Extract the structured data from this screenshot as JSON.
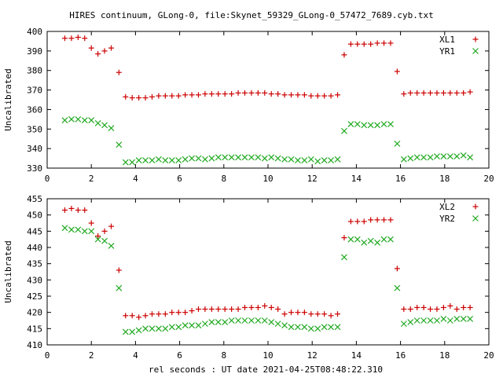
{
  "title": "HIRES continuum, GLong-0, file:Skynet_59329_GLong-0_57472_7689.cyb.txt",
  "xlabel": "rel seconds : UT date 2021-04-25T08:48:22.310",
  "chart_data": [
    {
      "type": "scatter",
      "ylabel": "Uncalibrated",
      "xlim": [
        0,
        20
      ],
      "ylim": [
        330,
        400
      ],
      "xticks": [
        "0",
        "2",
        "4",
        "6",
        "8",
        "10",
        "12",
        "14",
        "16",
        "18",
        "20"
      ],
      "yticks": [
        "330",
        "340",
        "350",
        "360",
        "370",
        "380",
        "390",
        "400"
      ],
      "legend_position": "top-right",
      "x": [
        0.8,
        1.1,
        1.4,
        1.7,
        2.0,
        2.3,
        2.6,
        2.9,
        3.25,
        3.55,
        3.85,
        4.15,
        4.45,
        4.75,
        5.05,
        5.35,
        5.65,
        5.95,
        6.25,
        6.55,
        6.85,
        7.15,
        7.45,
        7.75,
        8.05,
        8.35,
        8.65,
        8.95,
        9.25,
        9.55,
        9.85,
        10.15,
        10.45,
        10.75,
        11.05,
        11.35,
        11.65,
        11.95,
        12.25,
        12.55,
        12.85,
        13.15,
        13.45,
        13.75,
        14.05,
        14.35,
        14.65,
        14.95,
        15.25,
        15.55,
        15.85,
        16.15,
        16.45,
        16.75,
        17.05,
        17.35,
        17.65,
        17.95,
        18.25,
        18.55,
        18.85,
        19.15
      ],
      "series": [
        {
          "name": "XL1",
          "color": "#cc0000",
          "marker": "plus",
          "values": [
            396.5,
            396.5,
            397,
            396.5,
            391.5,
            388.5,
            390,
            391.5,
            379,
            366.5,
            366,
            366,
            366,
            366.5,
            367,
            367,
            367,
            367,
            367.5,
            367.5,
            367.5,
            368,
            368,
            368,
            368,
            368,
            368.5,
            368.5,
            368.5,
            368.5,
            368.5,
            368,
            368,
            367.5,
            367.5,
            367.5,
            367.5,
            367,
            367,
            367,
            367,
            367.5,
            388,
            393.5,
            393.5,
            393.5,
            393.5,
            394,
            394,
            394,
            379.5,
            368,
            368.5,
            368.5,
            368.5,
            368.5,
            368.5,
            368.5,
            368.5,
            368.5,
            368.5,
            369
          ]
        },
        {
          "name": "YR1",
          "color": "#22aa22",
          "marker": "cross",
          "values": [
            354.5,
            355,
            355,
            354.5,
            354.5,
            353,
            352,
            350.5,
            342,
            333,
            333,
            334,
            334,
            334,
            334.5,
            334,
            334,
            334,
            334.5,
            335,
            335,
            334.5,
            335,
            335.5,
            335.5,
            335.5,
            335.5,
            335.5,
            335.5,
            335.5,
            335,
            335.5,
            335,
            334.5,
            334.5,
            334,
            334,
            334.5,
            333.5,
            334,
            334,
            334.5,
            349,
            352.5,
            352.5,
            352,
            352,
            352,
            352.5,
            352.5,
            342.5,
            334.5,
            335,
            335.5,
            335.5,
            335.5,
            336,
            336,
            336,
            336,
            336.5,
            335.5
          ]
        }
      ]
    },
    {
      "type": "scatter",
      "ylabel": "Uncalibrated",
      "xlim": [
        0,
        20
      ],
      "ylim": [
        410,
        455
      ],
      "xticks": [
        "0",
        "2",
        "4",
        "6",
        "8",
        "10",
        "12",
        "14",
        "16",
        "18",
        "20"
      ],
      "yticks": [
        "410",
        "415",
        "420",
        "425",
        "430",
        "435",
        "440",
        "445",
        "450",
        "455"
      ],
      "legend_position": "top-right",
      "x": [
        0.8,
        1.1,
        1.4,
        1.7,
        2.0,
        2.3,
        2.6,
        2.9,
        3.25,
        3.55,
        3.85,
        4.15,
        4.45,
        4.75,
        5.05,
        5.35,
        5.65,
        5.95,
        6.25,
        6.55,
        6.85,
        7.15,
        7.45,
        7.75,
        8.05,
        8.35,
        8.65,
        8.95,
        9.25,
        9.55,
        9.85,
        10.15,
        10.45,
        10.75,
        11.05,
        11.35,
        11.65,
        11.95,
        12.25,
        12.55,
        12.85,
        13.15,
        13.45,
        13.75,
        14.05,
        14.35,
        14.65,
        14.95,
        15.25,
        15.55,
        15.85,
        16.15,
        16.45,
        16.75,
        17.05,
        17.35,
        17.65,
        17.95,
        18.25,
        18.55,
        18.85,
        19.15
      ],
      "series": [
        {
          "name": "XL2",
          "color": "#cc0000",
          "marker": "plus",
          "values": [
            451.5,
            452,
            451.5,
            451.5,
            447.5,
            443.5,
            445,
            446.5,
            433,
            419,
            419,
            418.5,
            419,
            419.5,
            419.5,
            419.5,
            420,
            420,
            420,
            420.5,
            421,
            421,
            421,
            421,
            421,
            421,
            421,
            421.5,
            421.5,
            421.5,
            422,
            421.5,
            421,
            419.5,
            420,
            420,
            420,
            419.5,
            419.5,
            419.5,
            419,
            419.5,
            443,
            448,
            448,
            448,
            448.5,
            448.5,
            448.5,
            448.5,
            433.5,
            421,
            421,
            421.5,
            421.5,
            421,
            421,
            421.5,
            422,
            421,
            421.5,
            421.5
          ]
        },
        {
          "name": "YR2",
          "color": "#22aa22",
          "marker": "cross",
          "values": [
            446,
            445.5,
            445.5,
            445,
            445,
            442.5,
            442,
            440.5,
            427.5,
            414,
            414,
            414.5,
            415,
            415,
            415,
            415,
            415.5,
            415.5,
            416,
            416,
            416,
            416.5,
            417,
            417,
            417,
            417.5,
            417.5,
            417.5,
            417.5,
            417.5,
            417.5,
            417,
            416.5,
            416,
            415.5,
            415.5,
            415.5,
            415,
            415,
            415.5,
            415.5,
            415.5,
            437,
            442.5,
            442.5,
            441.5,
            442,
            441.5,
            442.5,
            442.5,
            427.5,
            416.5,
            417,
            417.5,
            417.5,
            417.5,
            417.5,
            418,
            417.5,
            418,
            418,
            418
          ]
        }
      ]
    }
  ]
}
